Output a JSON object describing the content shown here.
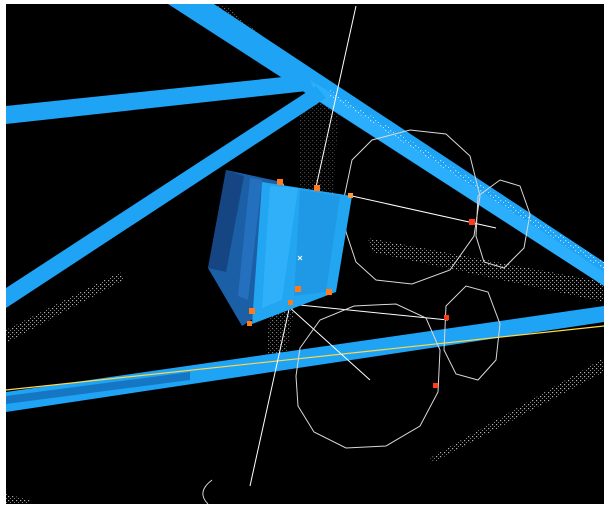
{
  "scene": {
    "background": "#000000",
    "frame_border": "#ffffff",
    "beam_color": "#1fa3f5",
    "beam_shadow": "#1577c4",
    "box_face": "#22a6f2",
    "box_side": "#1b5fa6",
    "box_dark": "#143f7a",
    "handle_color": "#ff7a1a",
    "handle_active": "#ff3b1a",
    "guide_line": "#ffffff",
    "axis_line": "#ffd84a",
    "pointcloud": "#d8d8d8"
  }
}
